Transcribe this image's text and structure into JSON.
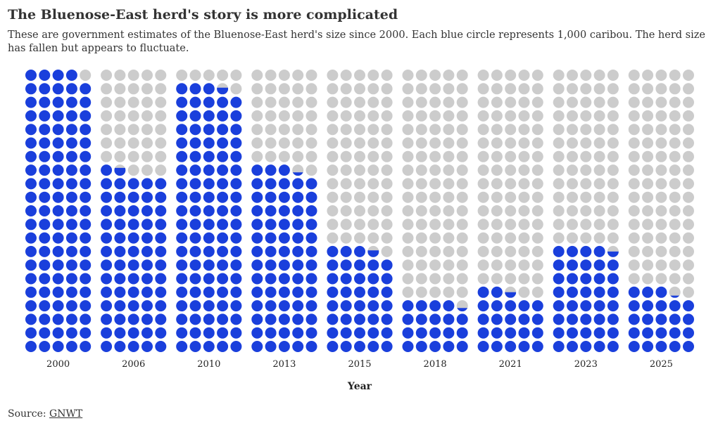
{
  "header": {
    "title": "The Bluenose-East herd's story is more complicated",
    "subtitle": "These are government estimates of the Bluenose-East herd's size since 2000. Each blue circle represents 1,000 caribou. The herd size has fallen but appears to fluctuate."
  },
  "source": {
    "label": "Source:",
    "link_text": "GNWT"
  },
  "colors": {
    "filled": "#1a3fdc",
    "empty": "#cccccc",
    "text": "#333333"
  },
  "chart_data": {
    "type": "waffle",
    "unit": "1,000 caribou per circle",
    "circles_per_column": 105,
    "columns_per_row": 5,
    "xlabel": "Year",
    "categories": [
      "2000",
      "2006",
      "2010",
      "2013",
      "2015",
      "2018",
      "2021",
      "2023",
      "2025"
    ],
    "values": [
      104,
      66.7,
      98.6,
      68.3,
      38.6,
      19.3,
      22.5,
      39.5,
      23.2
    ]
  }
}
